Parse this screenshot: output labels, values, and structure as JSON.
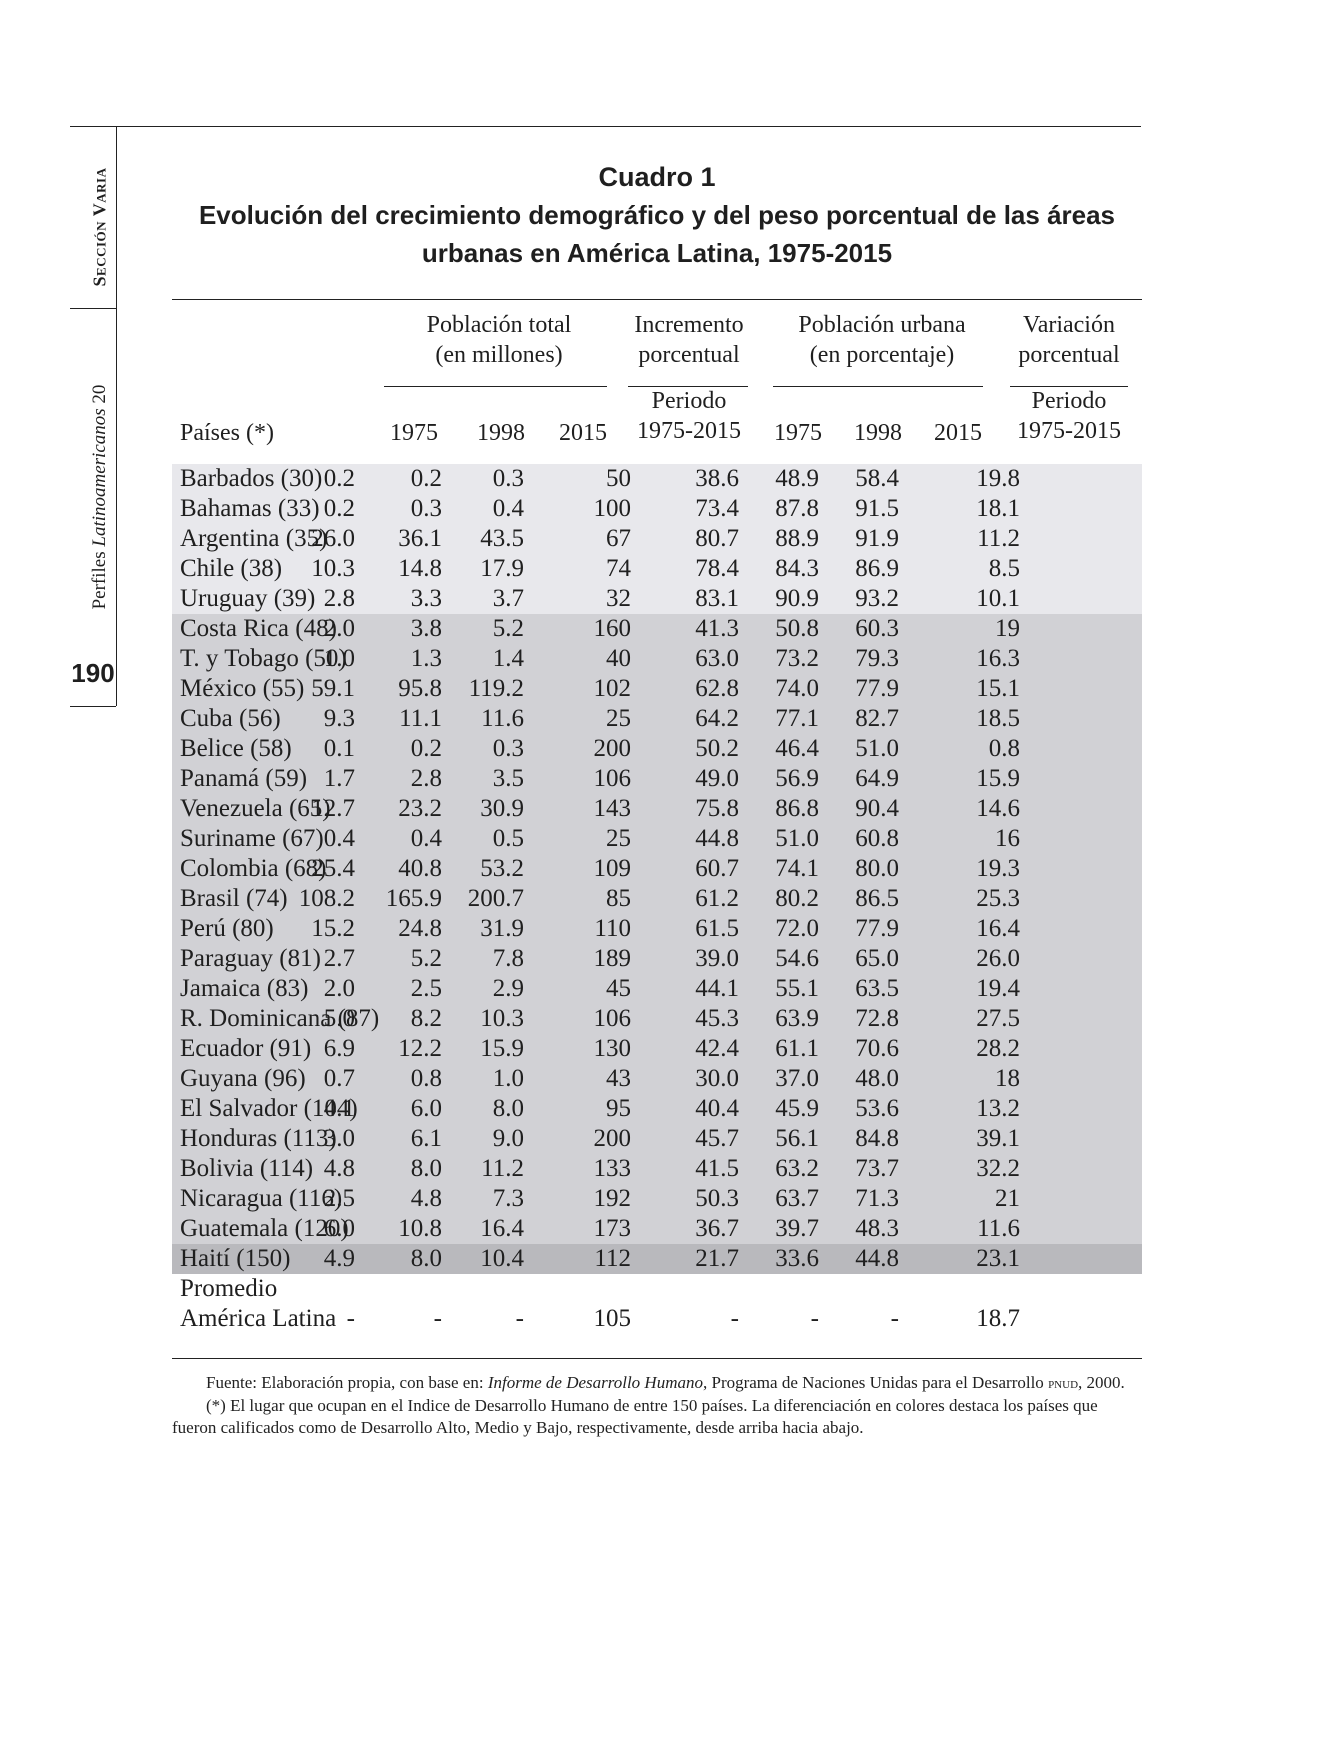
{
  "margin": {
    "section": "Sección Varia",
    "journal": "Perfiles",
    "journal_italic": "Latinoamericanos",
    "journal_number": "20",
    "page_number": "190"
  },
  "caption": {
    "label": "Cuadro 1",
    "title": "Evolución del crecimiento demográfico y del peso porcentual de las áreas urbanas en América Latina, 1975-2015"
  },
  "table": {
    "col_countries": "Países (*)",
    "groups": {
      "pop_total_1": "Población total",
      "pop_total_2": "(en millones)",
      "increase_1": "Incremento",
      "increase_2": "porcentual",
      "increase_period_1": "Periodo",
      "increase_period_2": "1975-2015",
      "urban_1": "Población urbana",
      "urban_2": "(en porcentaje)",
      "variation_1": "Variación",
      "variation_2": "porcentual",
      "variation_period_1": "Periodo",
      "variation_period_2": "1975-2015"
    },
    "years": [
      "1975",
      "1998",
      "2015",
      "1975",
      "1998",
      "2015"
    ],
    "rows": [
      {
        "tier": "high",
        "name": "Barbados (30)",
        "v": [
          "0.2",
          "0.2",
          "0.3",
          "50",
          "38.6",
          "48.9",
          "58.4",
          "19.8"
        ]
      },
      {
        "tier": "high",
        "name": "Bahamas (33)",
        "v": [
          "0.2",
          "0.3",
          "0.4",
          "100",
          "73.4",
          "87.8",
          "91.5",
          "18.1"
        ]
      },
      {
        "tier": "high",
        "name": "Argentina (35)",
        "v": [
          "26.0",
          "36.1",
          "43.5",
          "67",
          "80.7",
          "88.9",
          "91.9",
          "11.2"
        ]
      },
      {
        "tier": "high",
        "name": "Chile (38)",
        "v": [
          "10.3",
          "14.8",
          "17.9",
          "74",
          "78.4",
          "84.3",
          "86.9",
          "8.5"
        ]
      },
      {
        "tier": "high",
        "name": "Uruguay (39)",
        "v": [
          "2.8",
          "3.3",
          "3.7",
          "32",
          "83.1",
          "90.9",
          "93.2",
          "10.1"
        ]
      },
      {
        "tier": "mid",
        "name": "Costa Rica (48)",
        "v": [
          "2.0",
          "3.8",
          "5.2",
          "160",
          "41.3",
          "50.8",
          "60.3",
          "19"
        ]
      },
      {
        "tier": "mid",
        "name": "T. y Tobago (50)",
        "v": [
          "1.0",
          "1.3",
          "1.4",
          "40",
          "63.0",
          "73.2",
          "79.3",
          "16.3"
        ]
      },
      {
        "tier": "mid",
        "name": "México (55)",
        "v": [
          "59.1",
          "95.8",
          "119.2",
          "102",
          "62.8",
          "74.0",
          "77.9",
          "15.1"
        ]
      },
      {
        "tier": "mid",
        "name": "Cuba (56)",
        "v": [
          "9.3",
          "11.1",
          "11.6",
          "25",
          "64.2",
          "77.1",
          "82.7",
          "18.5"
        ]
      },
      {
        "tier": "mid",
        "name": "Belice (58)",
        "v": [
          "0.1",
          "0.2",
          "0.3",
          "200",
          "50.2",
          "46.4",
          "51.0",
          "0.8"
        ]
      },
      {
        "tier": "mid",
        "name": "Panamá (59)",
        "v": [
          "1.7",
          "2.8",
          "3.5",
          "106",
          "49.0",
          "56.9",
          "64.9",
          "15.9"
        ]
      },
      {
        "tier": "mid",
        "name": "Venezuela (65)",
        "v": [
          "12.7",
          "23.2",
          "30.9",
          "143",
          "75.8",
          "86.8",
          "90.4",
          "14.6"
        ]
      },
      {
        "tier": "mid",
        "name": "Suriname (67)",
        "v": [
          "0.4",
          "0.4",
          "0.5",
          "25",
          "44.8",
          "51.0",
          "60.8",
          "16"
        ]
      },
      {
        "tier": "mid",
        "name": "Colombia (68)",
        "v": [
          "25.4",
          "40.8",
          "53.2",
          "109",
          "60.7",
          "74.1",
          "80.0",
          "19.3"
        ]
      },
      {
        "tier": "mid",
        "name": "Brasil (74)",
        "v": [
          "108.2",
          "165.9",
          "200.7",
          "85",
          "61.2",
          "80.2",
          "86.5",
          "25.3"
        ]
      },
      {
        "tier": "mid",
        "name": "Perú (80)",
        "v": [
          "15.2",
          "24.8",
          "31.9",
          "110",
          "61.5",
          "72.0",
          "77.9",
          "16.4"
        ]
      },
      {
        "tier": "mid",
        "name": "Paraguay (81)",
        "v": [
          "2.7",
          "5.2",
          "7.8",
          "189",
          "39.0",
          "54.6",
          "65.0",
          "26.0"
        ]
      },
      {
        "tier": "mid",
        "name": "Jamaica (83)",
        "v": [
          "2.0",
          "2.5",
          "2.9",
          "45",
          "44.1",
          "55.1",
          "63.5",
          "19.4"
        ]
      },
      {
        "tier": "mid",
        "name": "R. Dominicana (87)",
        "v": [
          "5.0",
          "8.2",
          "10.3",
          "106",
          "45.3",
          "63.9",
          "72.8",
          "27.5"
        ]
      },
      {
        "tier": "mid",
        "name": "Ecuador (91)",
        "v": [
          "6.9",
          "12.2",
          "15.9",
          "130",
          "42.4",
          "61.1",
          "70.6",
          "28.2"
        ]
      },
      {
        "tier": "mid",
        "name": "Guyana (96)",
        "v": [
          "0.7",
          "0.8",
          "1.0",
          "43",
          "30.0",
          "37.0",
          "48.0",
          "18"
        ]
      },
      {
        "tier": "mid",
        "name": "El Salvador (104)",
        "v": [
          "4.1",
          "6.0",
          "8.0",
          "95",
          "40.4",
          "45.9",
          "53.6",
          "13.2"
        ]
      },
      {
        "tier": "mid",
        "name": "Honduras (113)",
        "v": [
          "3.0",
          "6.1",
          "9.0",
          "200",
          "45.7",
          "56.1",
          "84.8",
          "39.1"
        ]
      },
      {
        "tier": "mid",
        "name": "Bolivia (114)",
        "v": [
          "4.8",
          "8.0",
          "11.2",
          "133",
          "41.5",
          "63.2",
          "73.7",
          "32.2"
        ]
      },
      {
        "tier": "mid",
        "name": "Nicaragua (116)",
        "v": [
          "2.5",
          "4.8",
          "7.3",
          "192",
          "50.3",
          "63.7",
          "71.3",
          "21"
        ]
      },
      {
        "tier": "mid",
        "name": "Guatemala (120)",
        "v": [
          "6.0",
          "10.8",
          "16.4",
          "173",
          "36.7",
          "39.7",
          "48.3",
          "11.6"
        ]
      },
      {
        "tier": "low",
        "name": "Haití (150)",
        "v": [
          "4.9",
          "8.0",
          "10.4",
          "112",
          "21.7",
          "33.6",
          "44.8",
          "23.1"
        ]
      }
    ],
    "average": {
      "label_1": "Promedio",
      "label_2": "América Latina",
      "v": [
        "-",
        "-",
        "-",
        "105",
        "-",
        "-",
        "-",
        "18.7"
      ]
    }
  },
  "notes": {
    "source_prefix": "Fuente: Elaboración propia, con base en:",
    "source_title": "Informe de Desarrollo Humano",
    "source_suffix": ", Programa de Naciones Unidas para el Desarrollo",
    "source_abbr": "pnud",
    "source_year": ", 2000.",
    "footnote": "(*) El lugar que ocupan en el Indice de Desarrollo Humano de entre 150 países. La diferenciación en colores destaca los países que fueron calificados como de Desarrollo Alto, Medio y Bajo, respectivamente, desde arriba hacia abajo."
  }
}
